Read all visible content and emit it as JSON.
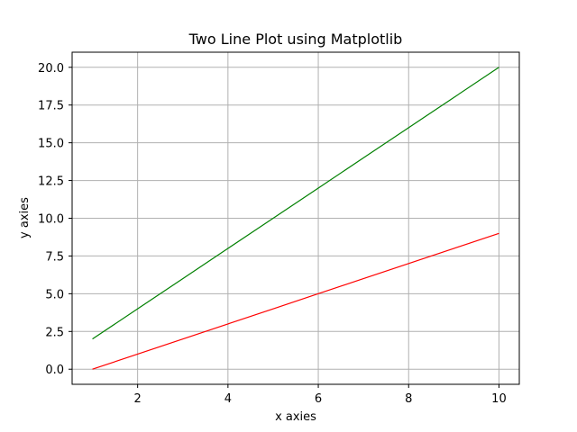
{
  "chart_data": {
    "type": "line",
    "title": "Two Line Plot using Matplotlib",
    "xlabel": "x axies",
    "ylabel": "y axies",
    "xlim": [
      0.55,
      10.45
    ],
    "ylim": [
      -1.0,
      21.0
    ],
    "x_ticks": [
      2,
      4,
      6,
      8,
      10
    ],
    "x_tick_labels": [
      "2",
      "4",
      "6",
      "8",
      "10"
    ],
    "y_ticks": [
      0,
      2.5,
      5,
      7.5,
      10,
      12.5,
      15,
      17.5,
      20
    ],
    "y_tick_labels": [
      "0.0",
      "2.5",
      "5.0",
      "7.5",
      "10.0",
      "12.5",
      "15.0",
      "17.5",
      "20.0"
    ],
    "grid": true,
    "legend": false,
    "series": [
      {
        "color": "#008000",
        "x": [
          1,
          2,
          3,
          4,
          5,
          6,
          7,
          8,
          9,
          10
        ],
        "y": [
          2,
          4,
          6,
          8,
          10,
          12,
          14,
          16,
          18,
          20
        ]
      },
      {
        "color": "#ff0000",
        "x": [
          1,
          2,
          3,
          4,
          5,
          6,
          7,
          8,
          9,
          10
        ],
        "y": [
          0,
          1,
          2,
          3,
          4,
          5,
          6,
          7,
          8,
          9
        ]
      }
    ]
  }
}
